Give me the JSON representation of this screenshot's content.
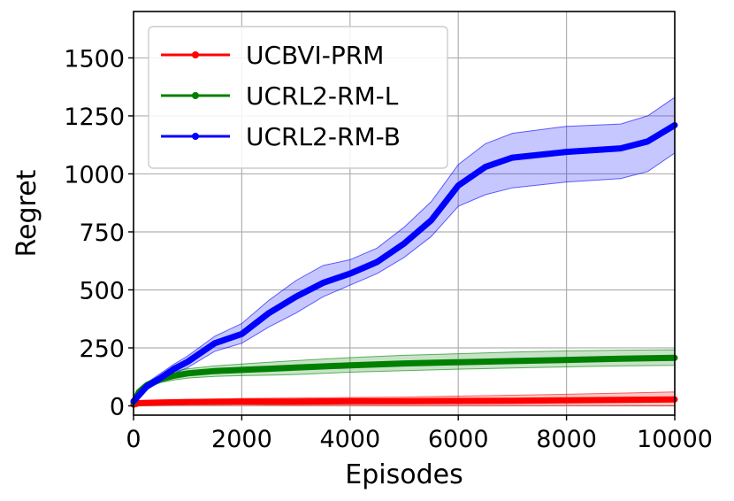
{
  "chart_data": {
    "type": "line",
    "title": "",
    "xlabel": "Episodes",
    "ylabel": "Regret",
    "xlim": [
      0,
      10000
    ],
    "ylim": [
      -40,
      1700
    ],
    "xticks": [
      0,
      2000,
      4000,
      6000,
      8000,
      10000
    ],
    "xtick_labels": [
      "0",
      "2000",
      "4000",
      "6000",
      "8000",
      "10000"
    ],
    "yticks": [
      0,
      250,
      500,
      750,
      1000,
      1250,
      1500
    ],
    "ytick_labels": [
      "0",
      "250",
      "500",
      "750",
      "1000",
      "1250",
      "1500"
    ],
    "grid": true,
    "legend_position": "top-left",
    "series": [
      {
        "name": "UCBVI-PRM",
        "color": "#ff0000",
        "x": [
          0,
          100,
          500,
          1000,
          2000,
          3000,
          4000,
          5000,
          6000,
          7000,
          8000,
          9000,
          10000
        ],
        "y": [
          5,
          12,
          14,
          16,
          18,
          18,
          20,
          20,
          21,
          22,
          24,
          26,
          28
        ],
        "lower": [
          0,
          3,
          4,
          5,
          5,
          3,
          3,
          2,
          2,
          2,
          2,
          1,
          0
        ],
        "upper": [
          12,
          22,
          25,
          28,
          32,
          34,
          36,
          38,
          42,
          46,
          50,
          55,
          60
        ]
      },
      {
        "name": "UCRL2-RM-L",
        "color": "#008000",
        "x": [
          0,
          100,
          250,
          500,
          750,
          1000,
          1500,
          2000,
          2500,
          3000,
          4000,
          5000,
          6000,
          7000,
          8000,
          9000,
          10000
        ],
        "y": [
          15,
          60,
          90,
          115,
          130,
          140,
          150,
          155,
          160,
          165,
          175,
          183,
          188,
          193,
          198,
          203,
          207
        ],
        "lower": [
          5,
          50,
          78,
          100,
          112,
          120,
          127,
          130,
          132,
          135,
          145,
          152,
          158,
          163,
          168,
          172,
          175
        ],
        "upper": [
          25,
          72,
          102,
          130,
          148,
          160,
          172,
          180,
          188,
          195,
          208,
          218,
          225,
          232,
          237,
          240,
          242
        ]
      },
      {
        "name": "UCRL2-RM-B",
        "color": "#0000ff",
        "x": [
          0,
          250,
          500,
          750,
          1000,
          1500,
          2000,
          2500,
          3000,
          3500,
          4000,
          4500,
          5000,
          5500,
          6000,
          6500,
          7000,
          8000,
          9000,
          9500,
          10000
        ],
        "y": [
          20,
          85,
          120,
          160,
          190,
          270,
          310,
          400,
          470,
          530,
          570,
          620,
          700,
          800,
          950,
          1030,
          1070,
          1095,
          1110,
          1140,
          1210
        ],
        "lower": [
          10,
          70,
          105,
          140,
          165,
          235,
          270,
          340,
          400,
          470,
          520,
          570,
          640,
          730,
          860,
          910,
          940,
          965,
          980,
          1010,
          1090
        ],
        "upper": [
          30,
          100,
          140,
          180,
          215,
          300,
          355,
          455,
          540,
          605,
          630,
          680,
          770,
          880,
          1040,
          1130,
          1175,
          1205,
          1215,
          1250,
          1330
        ]
      }
    ]
  }
}
